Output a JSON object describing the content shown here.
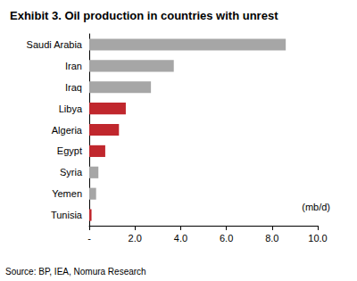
{
  "chart_data": {
    "type": "bar",
    "orientation": "horizontal",
    "title": "Exhibit 3. Oil production in countries with unrest",
    "categories": [
      "Saudi Arabia",
      "Iran",
      "Iraq",
      "Libya",
      "Algeria",
      "Egypt",
      "Syria",
      "Yemen",
      "Tunisia"
    ],
    "values": [
      8.6,
      3.7,
      2.7,
      1.6,
      1.3,
      0.7,
      0.4,
      0.3,
      0.1
    ],
    "colors": [
      "#a6a6a6",
      "#a6a6a6",
      "#a6a6a6",
      "#c0272d",
      "#c0272d",
      "#c0272d",
      "#a6a6a6",
      "#a6a6a6",
      "#c0272d"
    ],
    "xlim": [
      0,
      10
    ],
    "xticks": [
      {
        "value": 0,
        "label": "-"
      },
      {
        "value": 2,
        "label": "2.0"
      },
      {
        "value": 4,
        "label": "4.0"
      },
      {
        "value": 6,
        "label": "6.0"
      },
      {
        "value": 8,
        "label": "8.0"
      },
      {
        "value": 10,
        "label": "10.0"
      }
    ],
    "annotation": "(mb/d)",
    "source": "Source: BP, IEA, Nomura Research",
    "grid": false
  }
}
